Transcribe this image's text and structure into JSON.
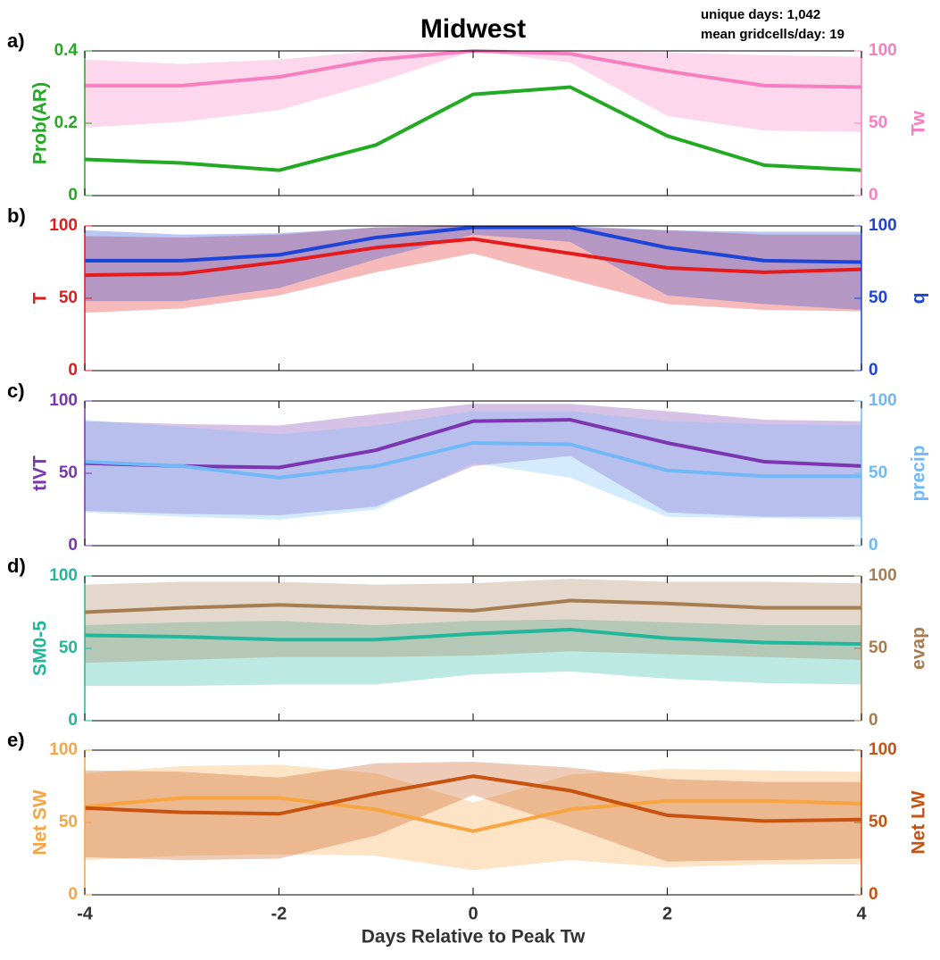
{
  "chart_data": [
    {
      "type": "line",
      "label": "a)",
      "title": "Midwest",
      "annotations": [
        "unique days: 1,042",
        "mean gridcells/day: 19"
      ],
      "x": [
        -4,
        -3,
        -2,
        -1,
        0,
        1,
        2,
        3,
        4
      ],
      "xlim": [
        -4,
        4
      ],
      "xticks": [
        -4,
        -2,
        0,
        2,
        4
      ],
      "ylim": [
        0,
        0.4
      ],
      "yticks": [
        0,
        0.2,
        0.4
      ],
      "y2lim": [
        0,
        100
      ],
      "y2ticks": [
        0,
        50,
        100
      ],
      "series": [
        {
          "name": "Prob(AR)",
          "color": "#22aa22",
          "axis": "y",
          "values": [
            0.1,
            0.09,
            0.07,
            0.14,
            0.28,
            0.3,
            0.165,
            0.084,
            0.07
          ]
        },
        {
          "name": "Tw",
          "color": "#f77fbf",
          "axis": "y2",
          "values": [
            76,
            76,
            82,
            94,
            100,
            98,
            86,
            76,
            75
          ],
          "lower": [
            47,
            51,
            59,
            78,
            100,
            92,
            55,
            45,
            44
          ],
          "upper": [
            94,
            91,
            94,
            100,
            100,
            100,
            99,
            97,
            96
          ]
        }
      ]
    },
    {
      "type": "line",
      "label": "b)",
      "x": [
        -4,
        -3,
        -2,
        -1,
        0,
        1,
        2,
        3,
        4
      ],
      "xlim": [
        -4,
        4
      ],
      "xticks": [
        -4,
        -2,
        0,
        2,
        4
      ],
      "ylim": [
        0,
        100
      ],
      "yticks": [
        0,
        50,
        100
      ],
      "y2lim": [
        0,
        100
      ],
      "y2ticks": [
        0,
        50,
        100
      ],
      "series": [
        {
          "name": "T",
          "color": "#e41a1c",
          "axis": "y",
          "values": [
            66,
            67,
            75,
            85,
            91,
            81,
            71,
            68,
            70
          ],
          "lower": [
            40,
            43,
            52,
            68,
            81,
            63,
            46,
            42,
            41
          ],
          "upper": [
            93,
            92,
            94,
            99,
            100,
            99,
            97,
            94,
            94
          ]
        },
        {
          "name": "q",
          "color": "#1c44d8",
          "axis": "y2",
          "values": [
            76,
            76,
            80,
            92,
            99,
            99,
            85,
            76,
            75
          ],
          "lower": [
            48,
            48,
            57,
            77,
            94,
            89,
            52,
            46,
            42
          ],
          "upper": [
            97,
            94,
            95,
            99,
            100,
            100,
            97,
            96,
            96
          ]
        }
      ]
    },
    {
      "type": "line",
      "label": "c)",
      "x": [
        -4,
        -3,
        -2,
        -1,
        0,
        1,
        2,
        3,
        4
      ],
      "xlim": [
        -4,
        4
      ],
      "xticks": [
        -4,
        -2,
        0,
        2,
        4
      ],
      "ylim": [
        0,
        100
      ],
      "yticks": [
        0,
        50,
        100
      ],
      "y2lim": [
        0,
        100
      ],
      "y2ticks": [
        0,
        50,
        100
      ],
      "series": [
        {
          "name": "tIVT",
          "color": "#7b35b0",
          "axis": "y",
          "values": [
            57,
            55,
            54,
            66,
            86,
            87,
            71,
            58,
            55
          ],
          "lower": [
            24,
            22,
            21,
            27,
            55,
            62,
            23,
            20,
            20
          ],
          "upper": [
            86,
            84,
            83,
            91,
            98,
            98,
            93,
            87,
            86
          ]
        },
        {
          "name": "precip",
          "color": "#72b8f7",
          "axis": "y2",
          "values": [
            58,
            55,
            47,
            55,
            71,
            70,
            52,
            48,
            48
          ],
          "lower": [
            23,
            20,
            18,
            25,
            57,
            47,
            20,
            19,
            18
          ],
          "upper": [
            87,
            82,
            77,
            83,
            93,
            93,
            86,
            84,
            83
          ]
        }
      ]
    },
    {
      "type": "line",
      "label": "d)",
      "x": [
        -4,
        -3,
        -2,
        -1,
        0,
        1,
        2,
        3,
        4
      ],
      "xlim": [
        -4,
        4
      ],
      "xticks": [
        -4,
        -2,
        0,
        2,
        4
      ],
      "ylim": [
        0,
        100
      ],
      "yticks": [
        0,
        50,
        100
      ],
      "y2lim": [
        0,
        100
      ],
      "y2ticks": [
        0,
        50,
        100
      ],
      "series": [
        {
          "name": "SM0-5",
          "color": "#20b79a",
          "axis": "y",
          "values": [
            59,
            58,
            56,
            56,
            60,
            63,
            57,
            54,
            53
          ],
          "lower": [
            24,
            24,
            25,
            25,
            32,
            34,
            29,
            26,
            25
          ],
          "upper": [
            66,
            68,
            69,
            66,
            69,
            70,
            68,
            66,
            66
          ]
        },
        {
          "name": "evap",
          "color": "#a67c52",
          "axis": "y2",
          "values": [
            75,
            78,
            80,
            78,
            76,
            83,
            81,
            78,
            78
          ],
          "lower": [
            40,
            42,
            44,
            44,
            45,
            48,
            46,
            44,
            42
          ],
          "upper": [
            94,
            96,
            96,
            94,
            95,
            98,
            96,
            96,
            95
          ]
        }
      ]
    },
    {
      "type": "line",
      "label": "e)",
      "xlabel": "Days Relative to Peak Tw",
      "x": [
        -4,
        -3,
        -2,
        -1,
        0,
        1,
        2,
        3,
        4
      ],
      "xlim": [
        -4,
        4
      ],
      "xticks": [
        -4,
        -2,
        0,
        2,
        4
      ],
      "ylim": [
        0,
        100
      ],
      "yticks": [
        0,
        50,
        100
      ],
      "y2lim": [
        0,
        100
      ],
      "y2ticks": [
        0,
        50,
        100
      ],
      "series": [
        {
          "name": "Net SW",
          "color": "#f7a441",
          "axis": "y",
          "values": [
            61,
            67,
            67,
            59,
            44,
            59,
            65,
            65,
            63
          ],
          "lower": [
            24,
            27,
            28,
            27,
            17,
            24,
            19,
            21,
            21
          ],
          "upper": [
            84,
            89,
            90,
            84,
            64,
            83,
            87,
            86,
            85
          ]
        },
        {
          "name": "Net LW",
          "color": "#c8520f",
          "axis": "y2",
          "values": [
            60,
            57,
            56,
            70,
            82,
            72,
            55,
            51,
            52
          ],
          "lower": [
            26,
            24,
            25,
            41,
            69,
            47,
            23,
            24,
            25
          ],
          "upper": [
            86,
            85,
            81,
            91,
            92,
            88,
            80,
            78,
            78
          ]
        }
      ]
    }
  ]
}
